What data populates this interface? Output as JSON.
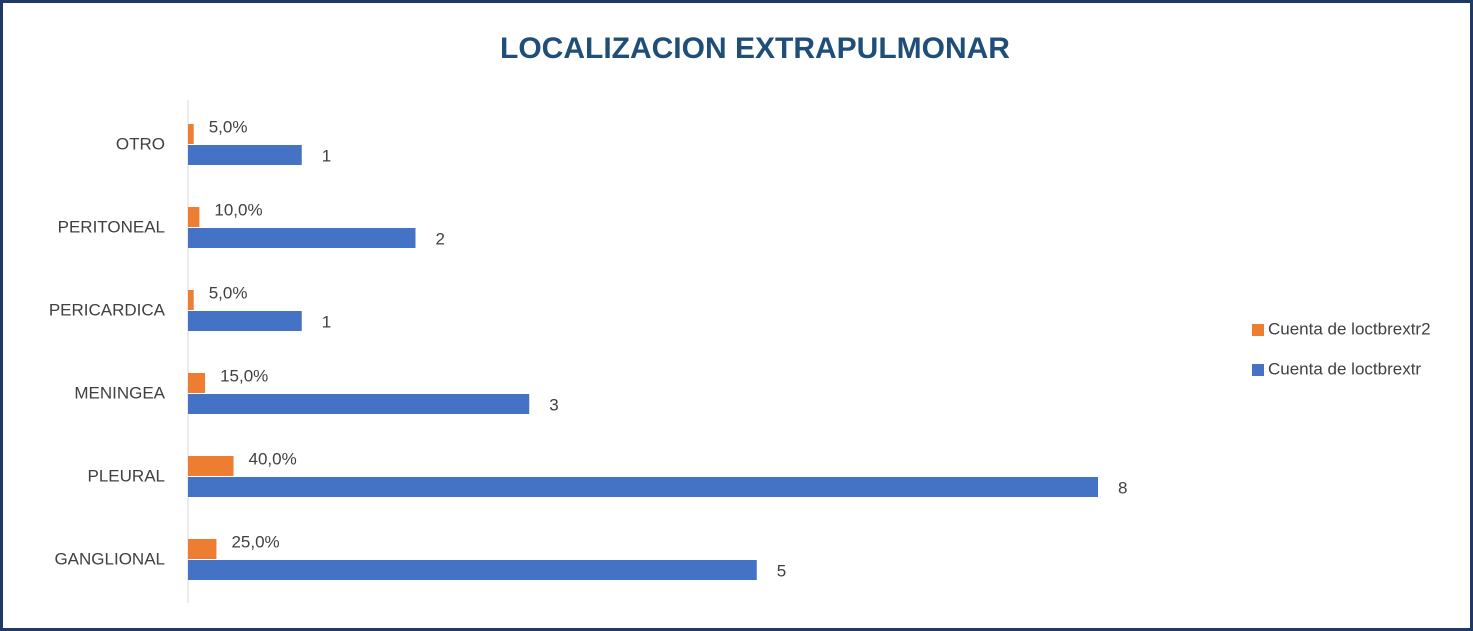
{
  "chart_data": {
    "type": "bar",
    "orientation": "horizontal",
    "title": "LOCALIZACION EXTRAPULMONAR",
    "categories": [
      "OTRO",
      "PERITONEAL",
      "PERICARDICA",
      "MENINGEA",
      "PLEURAL",
      "GANGLIONAL"
    ],
    "series": [
      {
        "name": "Cuenta de loctbrextr2",
        "color": "#ed7d31",
        "values": [
          0.05,
          0.1,
          0.05,
          0.15,
          0.4,
          0.25
        ],
        "value_labels": [
          "5,0%",
          "10,0%",
          "5,0%",
          "15,0%",
          "40,0%",
          "25,0%"
        ]
      },
      {
        "name": "Cuenta de loctbrextr",
        "color": "#4472c4",
        "values": [
          1,
          2,
          1,
          3,
          8,
          5
        ]
      }
    ],
    "xlim": [
      0,
      8
    ],
    "legend": "right"
  }
}
